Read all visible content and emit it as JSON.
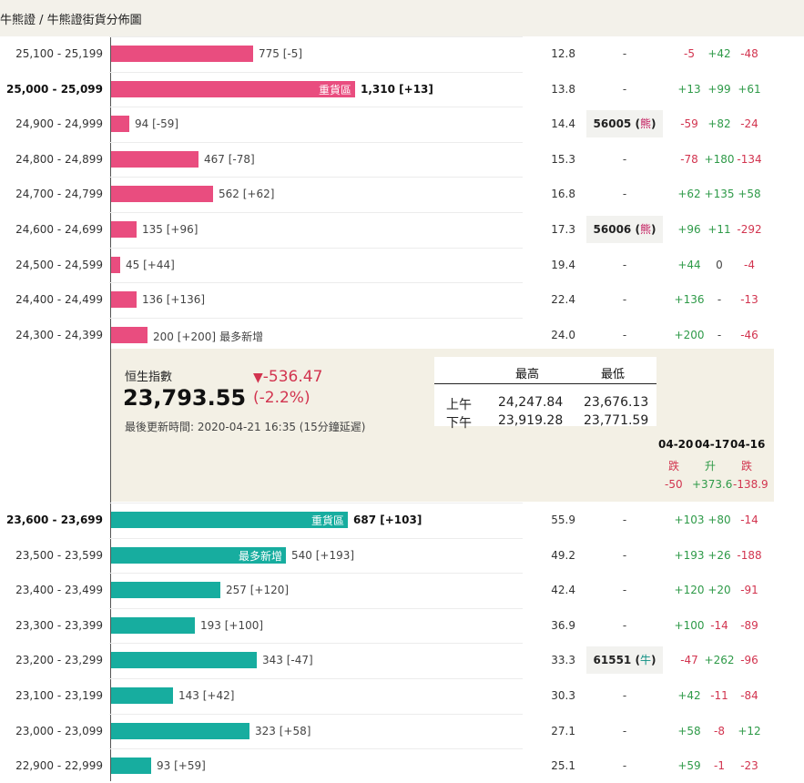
{
  "breadcrumb": {
    "text": "牛熊證 / 牛熊證街貨分佈圖"
  },
  "bear_rows": [
    {
      "range": "25,100 - 25,199",
      "value": "775",
      "change": "[-5]",
      "fill": 0.39,
      "ratio": "12.8",
      "code": "-",
      "paren": "",
      "d1": "-5",
      "d2": "+42",
      "d3": "-48"
    },
    {
      "range": "25,000 - 25,099",
      "value": "1,310",
      "change": "[+13]",
      "fill": 0.67,
      "ratio": "13.8",
      "code": "-",
      "paren": "",
      "d1": "+13",
      "d2": "+99",
      "d3": "+61",
      "inlabel": "重貨區",
      "bold": true
    },
    {
      "range": "24,900 - 24,999",
      "value": "94",
      "change": "[-59]",
      "fill": 0.05,
      "ratio": "14.4",
      "code": "56005",
      "paren": "熊",
      "d1": "-59",
      "d2": "+82",
      "d3": "-24"
    },
    {
      "range": "24,800 - 24,899",
      "value": "467",
      "change": "[-78]",
      "fill": 0.24,
      "ratio": "15.3",
      "code": "-",
      "paren": "",
      "d1": "-78",
      "d2": "+180",
      "d3": "-134"
    },
    {
      "range": "24,700 - 24,799",
      "value": "562",
      "change": "[+62]",
      "fill": 0.28,
      "ratio": "16.8",
      "code": "-",
      "paren": "",
      "d1": "+62",
      "d2": "+135",
      "d3": "+58"
    },
    {
      "range": "24,600 - 24,699",
      "value": "135",
      "change": "[+96]",
      "fill": 0.07,
      "ratio": "17.3",
      "code": "56006",
      "paren": "熊",
      "d1": "+96",
      "d2": "+11",
      "d3": "-292"
    },
    {
      "range": "24,500 - 24,599",
      "value": "45",
      "change": "[+44]",
      "fill": 0.025,
      "ratio": "19.4",
      "code": "-",
      "paren": "",
      "d1": "+44",
      "d2": "0",
      "d3": "-4"
    },
    {
      "range": "24,400 - 24,499",
      "value": "136",
      "change": "[+136]",
      "fill": 0.07,
      "ratio": "22.4",
      "code": "-",
      "paren": "",
      "d1": "+136",
      "d2": "-",
      "d3": "-13"
    },
    {
      "range": "24,300 - 24,399",
      "value": "200",
      "change": "[+200]",
      "fill": 0.1,
      "ratio": "24.0",
      "code": "-",
      "paren": "",
      "d1": "+200",
      "d2": "-",
      "d3": "-46",
      "tag": "最多新增"
    }
  ],
  "bull_rows": [
    {
      "range": "23,600 - 23,699",
      "value": "687",
      "change": "[+103]",
      "fill": 0.65,
      "ratio": "55.9",
      "code": "-",
      "paren": "",
      "d1": "+103",
      "d2": "+80",
      "d3": "-14",
      "inlabel": "重貨區",
      "bold": true
    },
    {
      "range": "23,500 - 23,599",
      "value": "540",
      "change": "[+193]",
      "fill": 0.48,
      "ratio": "49.2",
      "code": "-",
      "paren": "",
      "d1": "+193",
      "d2": "+26",
      "d3": "-188",
      "inlabel": "最多新增"
    },
    {
      "range": "23,400 - 23,499",
      "value": "257",
      "change": "[+120]",
      "fill": 0.3,
      "ratio": "42.4",
      "code": "-",
      "paren": "",
      "d1": "+120",
      "d2": "+20",
      "d3": "-91"
    },
    {
      "range": "23,300 - 23,399",
      "value": "193",
      "change": "[+100]",
      "fill": 0.23,
      "ratio": "36.9",
      "code": "-",
      "paren": "",
      "d1": "+100",
      "d2": "-14",
      "d3": "-89"
    },
    {
      "range": "23,200 - 23,299",
      "value": "343",
      "change": "[-47]",
      "fill": 0.4,
      "ratio": "33.3",
      "code": "61551",
      "paren": "牛",
      "d1": "-47",
      "d2": "+262",
      "d3": "-96"
    },
    {
      "range": "23,100 - 23,199",
      "value": "143",
      "change": "[+42]",
      "fill": 0.17,
      "ratio": "30.3",
      "code": "-",
      "paren": "",
      "d1": "+42",
      "d2": "-11",
      "d3": "-84"
    },
    {
      "range": "23,000 - 23,099",
      "value": "323",
      "change": "[+58]",
      "fill": 0.38,
      "ratio": "27.1",
      "code": "-",
      "paren": "",
      "d1": "+58",
      "d2": "-8",
      "d3": "+12"
    },
    {
      "range": "22,900 - 22,999",
      "value": "93",
      "change": "[+59]",
      "fill": 0.11,
      "ratio": "25.1",
      "code": "-",
      "paren": "",
      "d1": "+59",
      "d2": "-1",
      "d3": "-23"
    }
  ],
  "index_panel": {
    "name": "恒生指數",
    "value": "23,793.55",
    "change_arrow": "▼",
    "change": "-536.47",
    "change_pct": "(-2.2%)",
    "updated": "最後更新時間: 2020-04-21 16:35 (15分鐘延遲)",
    "hl_headers": {
      "high": "最高",
      "low": "最低"
    },
    "hl_rows": [
      {
        "label": "上午",
        "high": "24,247.84",
        "low": "23,676.13"
      },
      {
        "label": "下午",
        "high": "23,919.28",
        "low": "23,771.59"
      }
    ],
    "dates": [
      {
        "date": "04-20",
        "dir": "跌",
        "value": "-50"
      },
      {
        "date": "04-17",
        "dir": "升",
        "value": "+373.6"
      },
      {
        "date": "04-16",
        "dir": "跌",
        "value": "-138.9"
      }
    ]
  },
  "colors": {
    "bear": "#e94d7f",
    "bull": "#17ad9f",
    "up": "#2e9a48",
    "down": "#d2344f",
    "panel": "#f3f0e5"
  }
}
